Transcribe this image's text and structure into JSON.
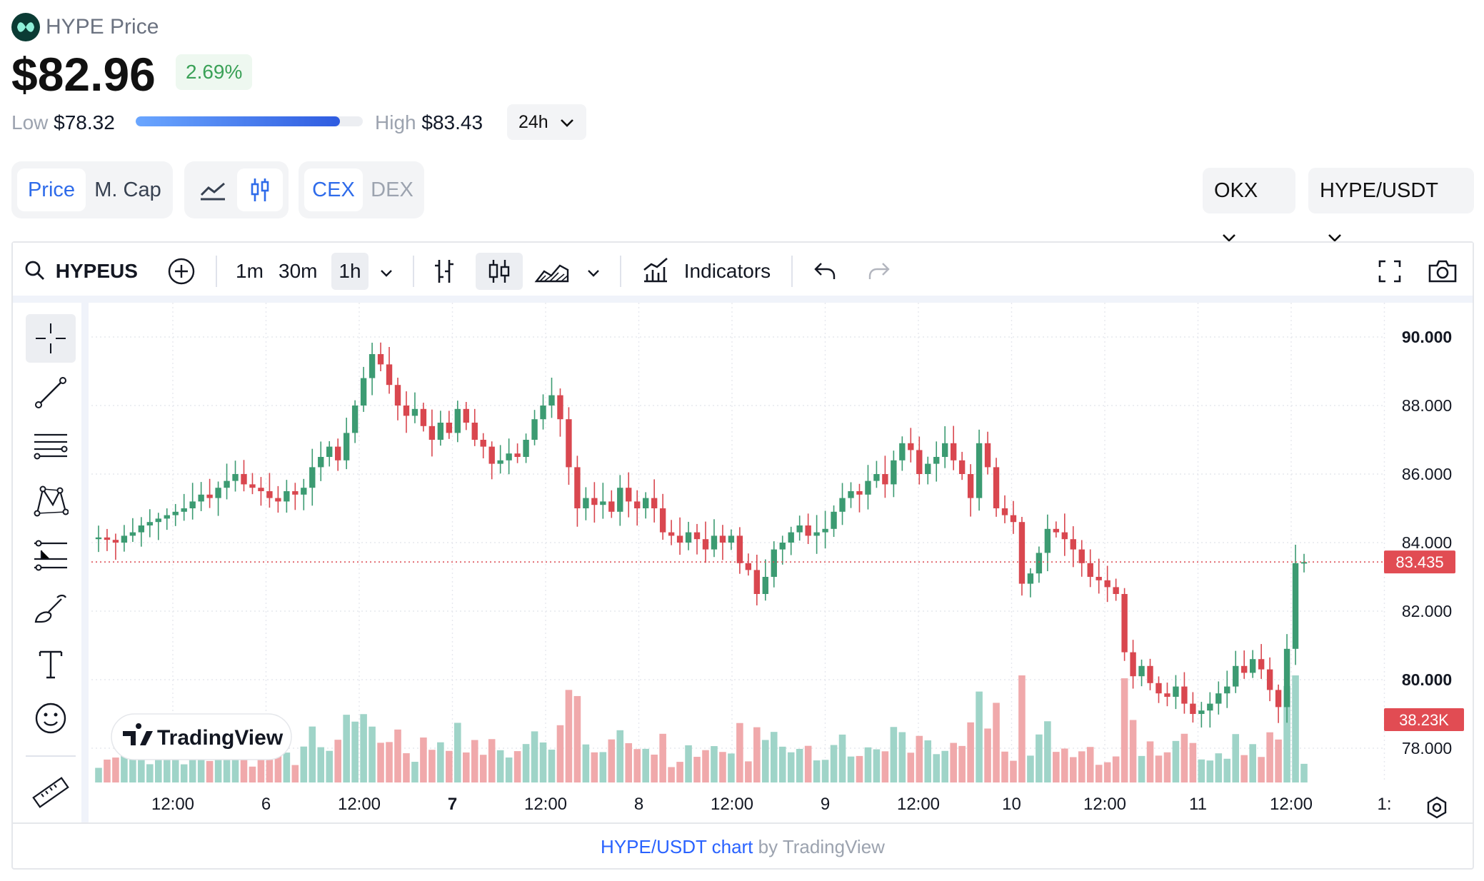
{
  "header": {
    "name": "HYPE Price",
    "price": "$82.96",
    "change": "2.69%",
    "low_label": "Low",
    "low_value": "$78.32",
    "high_label": "High",
    "high_value": "$83.43",
    "range_fraction": 0.9,
    "timeframe": "24h"
  },
  "toggles": {
    "price": "Price",
    "mcap": "M. Cap",
    "cex": "CEX",
    "dex": "DEX"
  },
  "selectors": {
    "exchange": "OKX",
    "pair": "HYPE/USDT"
  },
  "toolbar": {
    "symbol": "HYPEUS",
    "intervals": [
      "1m",
      "30m",
      "1h"
    ],
    "selected_interval": "1h",
    "indicators": "Indicators"
  },
  "footer": {
    "link": "HYPE/USDT chart",
    "by": "by TradingView"
  },
  "watermark": "TradingView",
  "colors": {
    "up": "#26a69a",
    "down": "#ef5350",
    "up_candle": "#3c9b72",
    "down_candle": "#d9474f",
    "accent": "#2e6bea"
  },
  "chart_data": {
    "type": "candlestick",
    "x_tick_labels": [
      "12:00",
      "6",
      "12:00",
      "7",
      "12:00",
      "8",
      "12:00",
      "9",
      "12:00",
      "10",
      "12:00",
      "11",
      "12:00",
      "1:"
    ],
    "y_tick_labels": [
      "90.000",
      "88.000",
      "86.000",
      "84.000",
      "82.000",
      "80.000",
      "78.000"
    ],
    "ylim": [
      77.0,
      91.0
    ],
    "last_price_label": "83.435",
    "last_price": 83.435,
    "volume_label": "38.23K",
    "grid": true,
    "close_series": [
      84.15,
      84.08,
      84.0,
      84.2,
      84.3,
      84.5,
      84.6,
      84.7,
      84.8,
      84.9,
      85.0,
      85.2,
      85.4,
      85.3,
      85.6,
      85.8,
      86.0,
      85.7,
      85.6,
      85.5,
      85.3,
      85.2,
      85.5,
      85.4,
      85.6,
      86.2,
      86.5,
      86.8,
      86.4,
      87.2,
      88.0,
      88.8,
      89.5,
      89.2,
      88.6,
      88.0,
      87.7,
      87.9,
      87.4,
      87.0,
      87.5,
      87.2,
      87.9,
      87.5,
      87.0,
      86.8,
      86.3,
      86.4,
      86.6,
      86.5,
      87.0,
      87.6,
      88.0,
      88.3,
      87.6,
      86.2,
      85.0,
      85.3,
      85.1,
      85.2,
      84.9,
      85.6,
      85.2,
      85.0,
      85.3,
      85.0,
      84.3,
      84.2,
      84.0,
      84.3,
      84.1,
      83.8,
      84.2,
      84.0,
      84.2,
      83.4,
      83.2,
      82.5,
      83.0,
      83.8,
      84.0,
      84.3,
      84.5,
      84.2,
      84.3,
      84.4,
      84.9,
      85.3,
      85.5,
      85.4,
      85.8,
      86.0,
      85.7,
      86.4,
      86.9,
      86.7,
      86.0,
      86.3,
      86.5,
      86.9,
      86.4,
      86.0,
      85.3,
      86.9,
      86.2,
      85.0,
      84.8,
      84.6,
      82.8,
      83.1,
      83.7,
      84.4,
      84.3,
      84.1,
      83.8,
      83.4,
      83.0,
      82.9,
      82.7,
      82.5,
      80.8,
      80.1,
      80.4,
      79.9,
      79.6,
      79.5,
      79.8,
      79.3,
      79.0,
      79.1,
      79.3,
      79.6,
      79.8,
      80.4,
      80.2,
      80.6,
      80.3,
      79.7,
      79.2,
      80.9,
      83.4,
      83.43
    ],
    "volume_scale": "relative"
  }
}
